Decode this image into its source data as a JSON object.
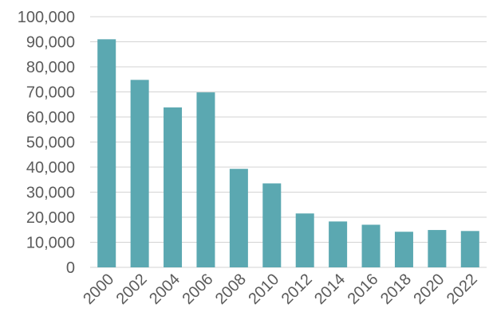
{
  "chart_data": {
    "type": "bar",
    "title": "",
    "xlabel": "",
    "ylabel": "",
    "categories": [
      "2000",
      "2002",
      "2004",
      "2006",
      "2008",
      "2010",
      "2012",
      "2014",
      "2016",
      "2018",
      "2020",
      "2022"
    ],
    "values": [
      91000,
      74800,
      63800,
      69800,
      39300,
      33500,
      21500,
      18300,
      17000,
      14200,
      14900,
      14500
    ],
    "ylim": [
      0,
      100000
    ],
    "yticks": [
      0,
      10000,
      20000,
      30000,
      40000,
      50000,
      60000,
      70000,
      80000,
      90000,
      100000
    ],
    "ytick_labels": [
      "0",
      "10,000",
      "20,000",
      "30,000",
      "40,000",
      "50,000",
      "60,000",
      "70,000",
      "80,000",
      "90,000",
      "100,000"
    ],
    "grid": true,
    "legend": "none",
    "colors": {
      "bar": "#5ba8b1",
      "grid": "#d3d3d3",
      "text": "#5b5b5b"
    }
  }
}
